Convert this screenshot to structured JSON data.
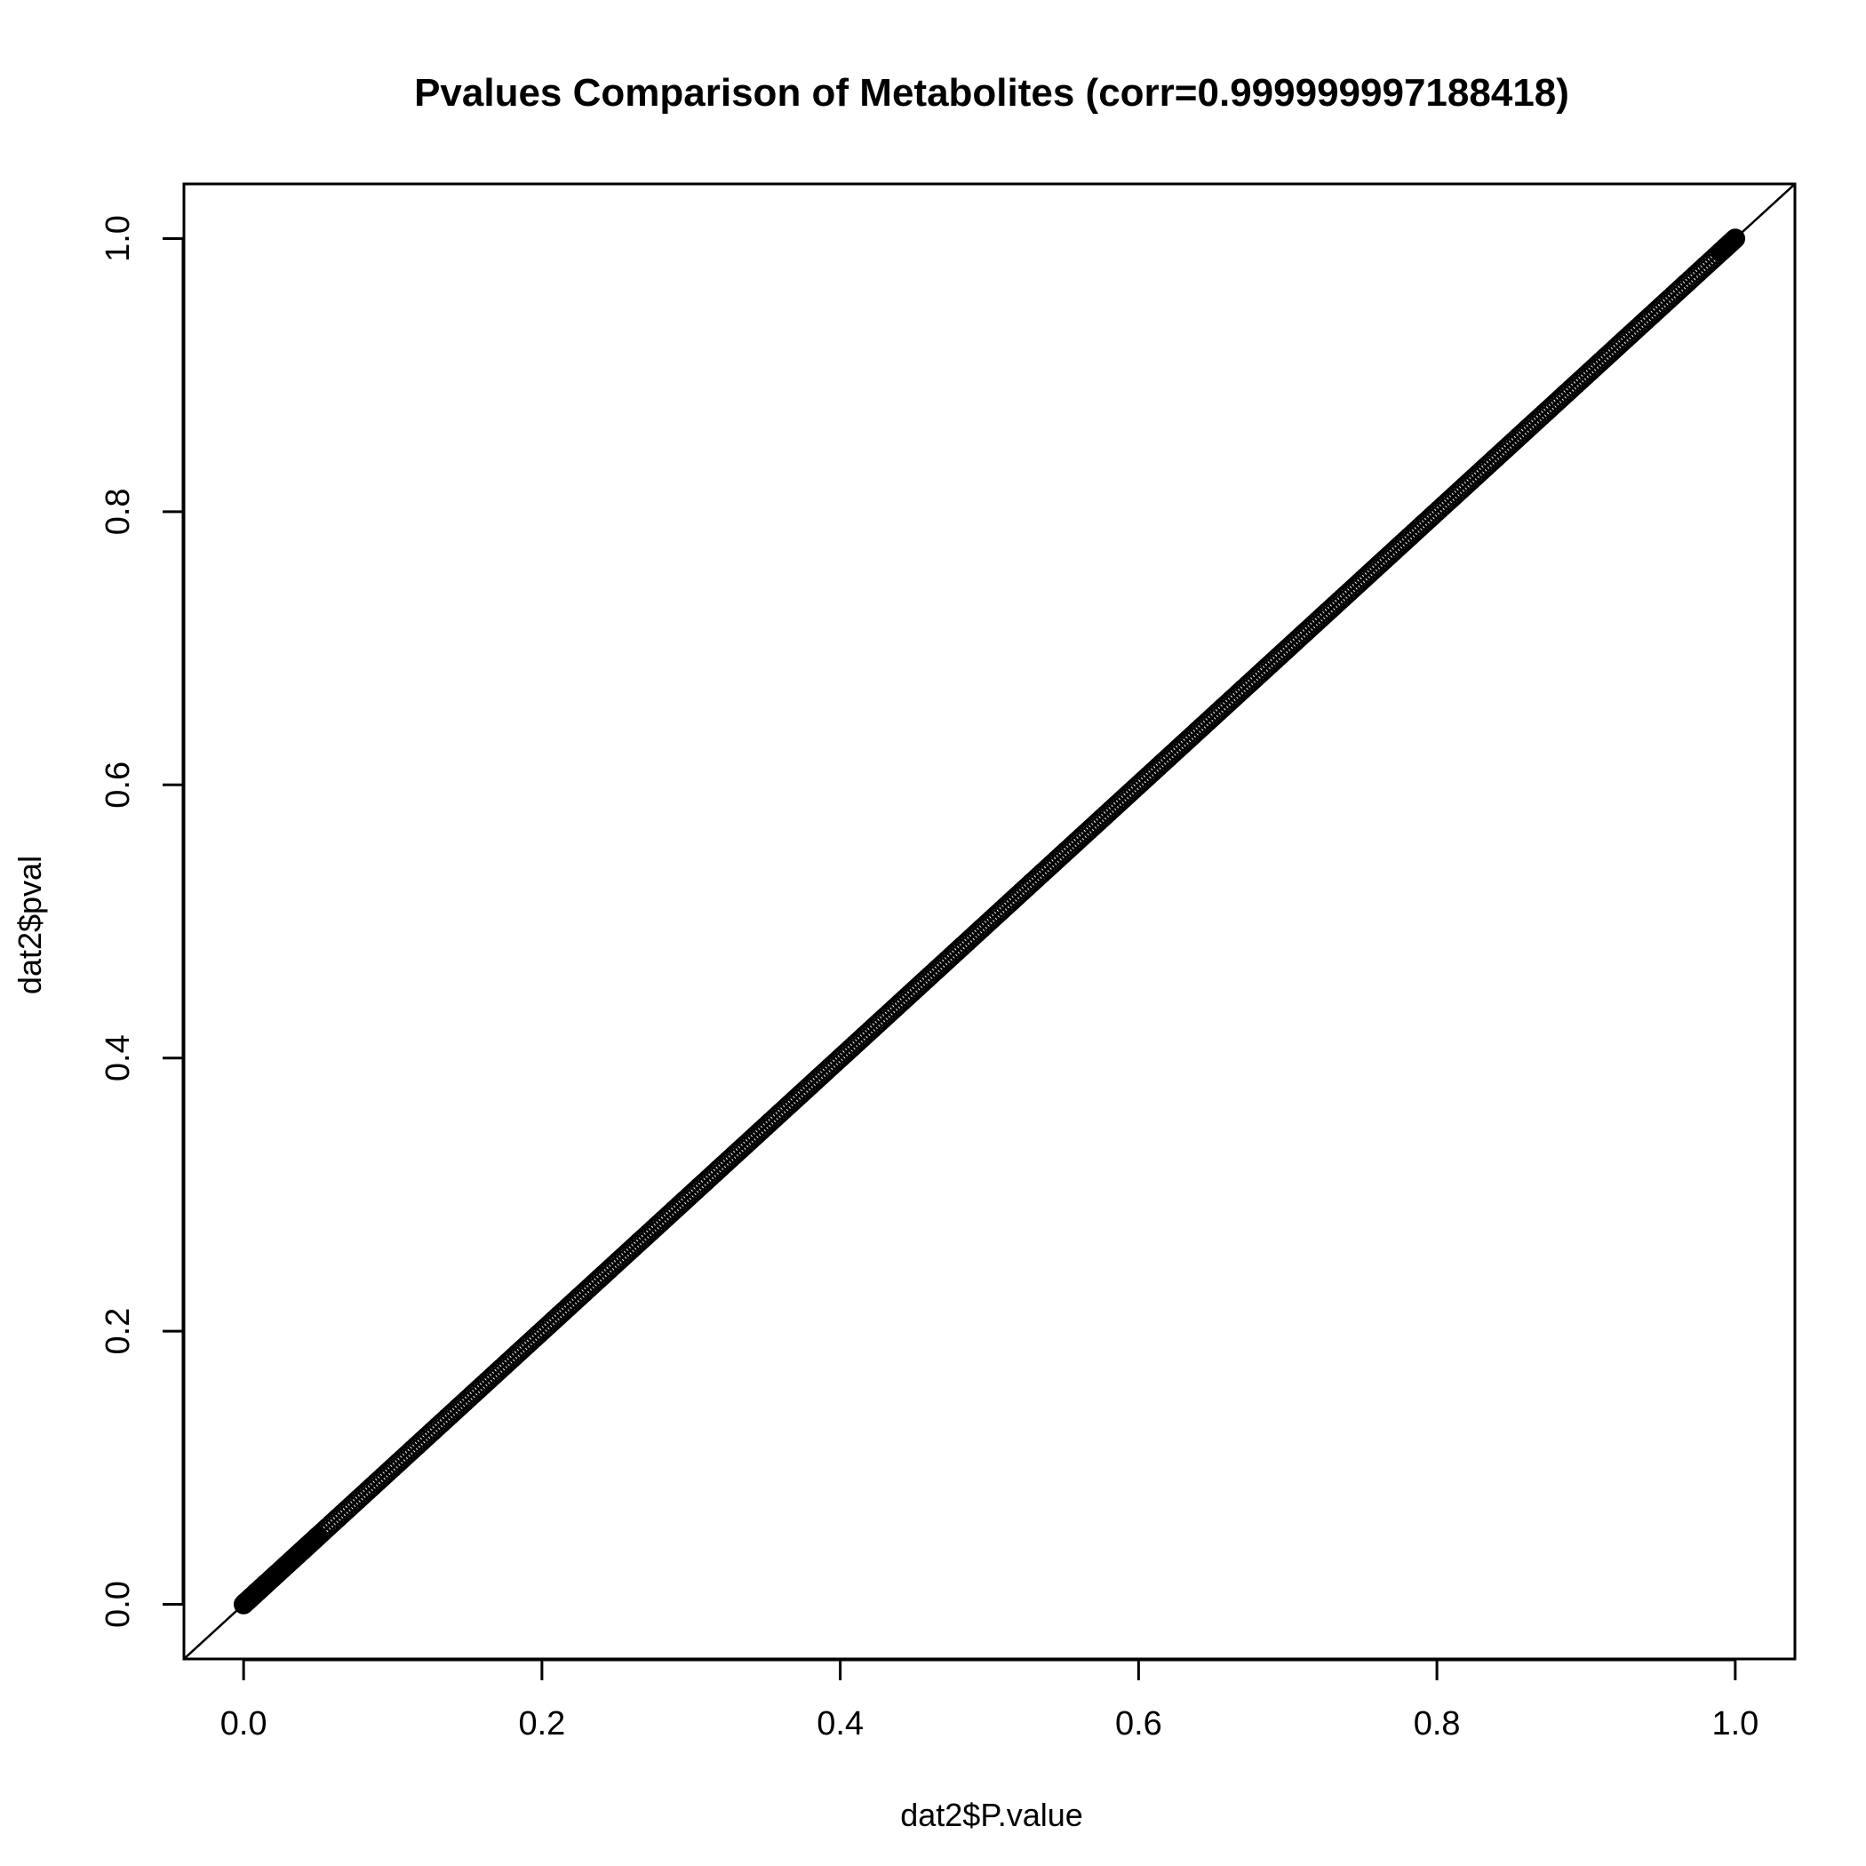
{
  "chart_data": {
    "type": "scatter",
    "title": "Pvalues Comparison of Metabolites (corr=0.999999997188418)",
    "xlabel": "dat2$P.value",
    "ylabel": "dat2$pval",
    "xlim": [
      -0.04,
      1.04
    ],
    "ylim": [
      -0.04,
      1.04
    ],
    "x_ticks": [
      0.0,
      0.2,
      0.4,
      0.6,
      0.8,
      1.0
    ],
    "y_ticks": [
      0.0,
      0.2,
      0.4,
      0.6,
      0.8,
      1.0
    ],
    "x_tick_labels": [
      "0.0",
      "0.2",
      "0.4",
      "0.6",
      "0.8",
      "1.0"
    ],
    "y_tick_labels": [
      "0.0",
      "0.2",
      "0.4",
      "0.6",
      "0.8",
      "1.0"
    ],
    "reference_line": {
      "intercept": 0,
      "slope": 1
    },
    "marker": "open-circle",
    "color": "#000000",
    "grid": false,
    "legend": "none",
    "points": {
      "x": [
        0,
        0.002,
        0.004,
        0.006,
        0.008,
        0.01,
        0.013,
        0.016,
        0.02,
        0.025,
        0.03,
        0.035,
        0.04,
        0.045,
        0.05,
        0.06,
        0.07,
        0.08,
        0.09,
        0.1,
        0.11,
        0.12,
        0.13,
        0.14,
        0.15,
        0.16,
        0.17,
        0.18,
        0.19,
        0.2,
        0.21,
        0.22,
        0.23,
        0.24,
        0.25,
        0.26,
        0.27,
        0.28,
        0.29,
        0.3,
        0.31,
        0.32,
        0.33,
        0.34,
        0.35,
        0.36,
        0.37,
        0.38,
        0.39,
        0.4,
        0.41,
        0.42,
        0.43,
        0.44,
        0.45,
        0.46,
        0.47,
        0.48,
        0.49,
        0.5,
        0.51,
        0.52,
        0.53,
        0.54,
        0.55,
        0.56,
        0.57,
        0.58,
        0.59,
        0.6,
        0.61,
        0.62,
        0.63,
        0.64,
        0.65,
        0.66,
        0.67,
        0.68,
        0.69,
        0.7,
        0.71,
        0.72,
        0.73,
        0.74,
        0.75,
        0.76,
        0.77,
        0.78,
        0.79,
        0.8,
        0.81,
        0.82,
        0.83,
        0.84,
        0.85,
        0.86,
        0.87,
        0.88,
        0.89,
        0.9,
        0.91,
        0.92,
        0.93,
        0.94,
        0.95,
        0.96,
        0.97,
        0.98,
        0.99,
        0.995,
        1.0
      ],
      "y": [
        0,
        0.002,
        0.004,
        0.006,
        0.008,
        0.01,
        0.013,
        0.016,
        0.02,
        0.025,
        0.03,
        0.035,
        0.04,
        0.045,
        0.05,
        0.06,
        0.07,
        0.08,
        0.09,
        0.1,
        0.11,
        0.12,
        0.13,
        0.14,
        0.15,
        0.16,
        0.17,
        0.18,
        0.19,
        0.2,
        0.21,
        0.22,
        0.23,
        0.24,
        0.25,
        0.26,
        0.27,
        0.28,
        0.29,
        0.3,
        0.31,
        0.32,
        0.33,
        0.34,
        0.35,
        0.36,
        0.37,
        0.38,
        0.39,
        0.4,
        0.41,
        0.42,
        0.43,
        0.44,
        0.45,
        0.46,
        0.47,
        0.48,
        0.49,
        0.5,
        0.51,
        0.52,
        0.53,
        0.54,
        0.55,
        0.56,
        0.57,
        0.58,
        0.59,
        0.6,
        0.61,
        0.62,
        0.63,
        0.64,
        0.65,
        0.66,
        0.67,
        0.68,
        0.69,
        0.7,
        0.71,
        0.72,
        0.73,
        0.74,
        0.75,
        0.76,
        0.77,
        0.78,
        0.79,
        0.8,
        0.81,
        0.82,
        0.83,
        0.84,
        0.85,
        0.86,
        0.87,
        0.88,
        0.89,
        0.9,
        0.91,
        0.92,
        0.93,
        0.94,
        0.95,
        0.96,
        0.97,
        0.98,
        0.99,
        0.995,
        1.0
      ]
    }
  }
}
